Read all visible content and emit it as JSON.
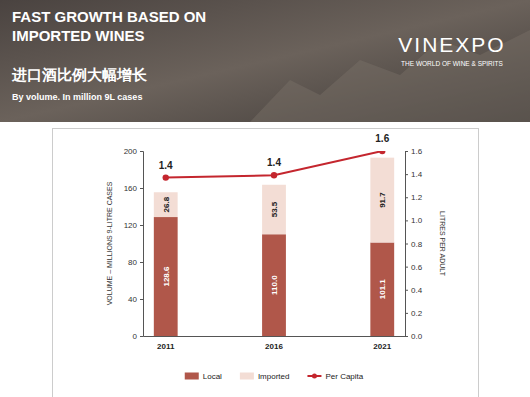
{
  "chart_data": {
    "type": "bar",
    "title": "FAST GROWTH BASED ON IMPORTED WINES",
    "subtitle": "进口酒比例大幅增长",
    "annotations": [
      "By volume. In million 9L cases"
    ],
    "logo": {
      "name": "VINEXPO",
      "tagline": "THE WORLD OF WINE & SPIRITS"
    },
    "categories": [
      "2011",
      "2016",
      "2021"
    ],
    "y_label": "VOLUME – MILLIONS 9-LITRE CASES",
    "y2_label": "LITRES PER ADULT",
    "series": [
      {
        "name": "Local",
        "type": "bar",
        "color": "#b0574a",
        "values": [
          128.6,
          110.0,
          101.1
        ],
        "value_labels": [
          "128.6",
          "110.0",
          "101.1"
        ]
      },
      {
        "name": "Imported",
        "type": "bar",
        "color": "#f3ddd5",
        "values": [
          26.8,
          53.5,
          91.7
        ]
      },
      {
        "name": "Per Capita",
        "type": "line",
        "axis": "y2",
        "color": "#c4262e",
        "marker": "circle",
        "values": [
          1.37,
          1.39,
          1.6
        ],
        "value_labels": [
          "1.4",
          "1.4",
          "1.6"
        ]
      }
    ],
    "stacked": true,
    "data_labels": true,
    "legend": "bottom",
    "grid": false,
    "ylim": [
      0,
      200
    ],
    "yticks": [
      0,
      40,
      80,
      120,
      160,
      200
    ],
    "y2lim": [
      0,
      1.6
    ],
    "y2ticks": [
      {
        "value": 0,
        "label": "0.0"
      },
      {
        "value": 0.2,
        "label": "0.2"
      },
      {
        "value": 0.4,
        "label": "0.4"
      },
      {
        "value": 0.6,
        "label": "0.6"
      },
      {
        "value": 0.8,
        "label": "0.8"
      },
      {
        "value": 1.0,
        "label": "1.0"
      },
      {
        "value": 1.2,
        "label": "1.2"
      },
      {
        "value": 1.4,
        "label": "1.4"
      },
      {
        "value": 1.6,
        "label": "1.6"
      }
    ]
  }
}
